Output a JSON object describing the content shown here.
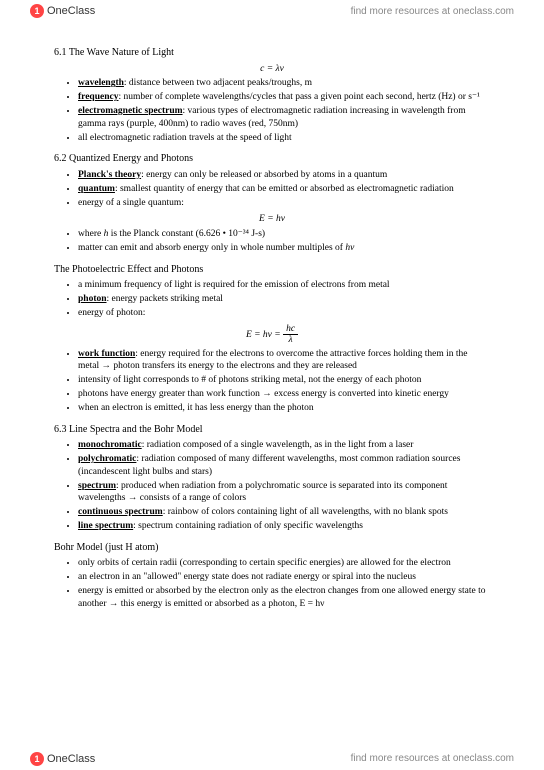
{
  "watermark": "find more resources at oneclass.com",
  "logo_text": "OneClass",
  "logo_glyph": "1",
  "section_6_1": {
    "title": "6.1 The Wave Nature of Light",
    "formula": "c = λν",
    "items": [
      {
        "term": "wavelength",
        "def": ": distance between two adjacent peaks/troughs, m"
      },
      {
        "term": "frequency",
        "def": ": number of complete wavelengths/cycles that pass a given point each second, hertz (Hz) or s⁻¹"
      },
      {
        "term": "electromagnetic spectrum",
        "def": ": various types of electromagnetic radiation increasing in wavelength from gamma rays (purple, 400nm) to radio waves (red, 750nm)"
      },
      {
        "plain": "all electromagnetic radiation travels at the speed of light"
      }
    ]
  },
  "section_6_2": {
    "title": "6.2 Quantized Energy and Photons",
    "items1": [
      {
        "term": "Planck's theory",
        "def": ": energy can only be released or absorbed by atoms in a quantum"
      },
      {
        "term": "quantum",
        "def": ": smallest quantity of energy that can be emitted or absorbed as electromagnetic radiation"
      },
      {
        "plain": "energy of a single quantum:"
      }
    ],
    "formula1": "E = hν",
    "items2": [
      {
        "plain_html": "where <span class='italic'>h</span> is the Planck constant (6.626 • 10⁻³⁴ J-s)"
      },
      {
        "plain_html": "matter can emit and absorb energy only in whole number multiples of <span class='italic'>hν</span>"
      }
    ],
    "sub_title": "The Photoelectric Effect and Photons",
    "items3": [
      {
        "plain": "a minimum frequency of light is required for the emission of electrons from metal"
      },
      {
        "term": "photon",
        "def": ": energy packets striking metal"
      },
      {
        "plain": "energy of photon:"
      }
    ],
    "formula2_lhs": "E = hν = ",
    "formula2_num": "hc",
    "formula2_den": "λ",
    "items4": [
      {
        "term": "work function",
        "def_html": ": energy required for the electrons to overcome the attractive forces holding them in the metal <span class='arrow'>→</span> photon transfers its energy to the electrons and they are released"
      },
      {
        "plain": "intensity of light corresponds to # of photons striking metal, not the energy of each photon"
      },
      {
        "plain_html": "photons have energy greater than work function <span class='arrow'>→</span> excess energy is converted into kinetic energy"
      },
      {
        "plain": "when an electron is emitted, it has less energy than the photon"
      }
    ]
  },
  "section_6_3": {
    "title": "6.3 Line Spectra and the Bohr Model",
    "items1": [
      {
        "term": "monochromatic",
        "def": ": radiation composed of a single wavelength, as in the light from a laser"
      },
      {
        "term": "polychromatic",
        "def": ": radiation composed of many different wavelengths, most common radiation sources (incandescent light bulbs and stars)"
      },
      {
        "term": "spectrum",
        "def_html": ": produced when radiation from a polychromatic source is separated into its component wavelengths <span class='arrow'>→</span> consists of a range of colors"
      },
      {
        "term": "continuous spectrum",
        "def": ": rainbow of colors containing light of all wavelengths, with no blank spots"
      },
      {
        "term": "line spectrum",
        "def": ": spectrum containing radiation of only specific wavelengths"
      }
    ],
    "sub_title": "Bohr Model (just H atom)",
    "items2": [
      {
        "plain": "only orbits of certain radii (corresponding to certain specific energies) are allowed for the electron"
      },
      {
        "plain": "an electron in an \"allowed\" energy state does not radiate energy or spiral into the nucleus"
      },
      {
        "plain_html": "energy is emitted or absorbed by the electron only as the electron changes from one allowed energy state to another <span class='arrow'>→</span> this energy is emitted or absorbed as a photon, E = hν"
      }
    ]
  }
}
